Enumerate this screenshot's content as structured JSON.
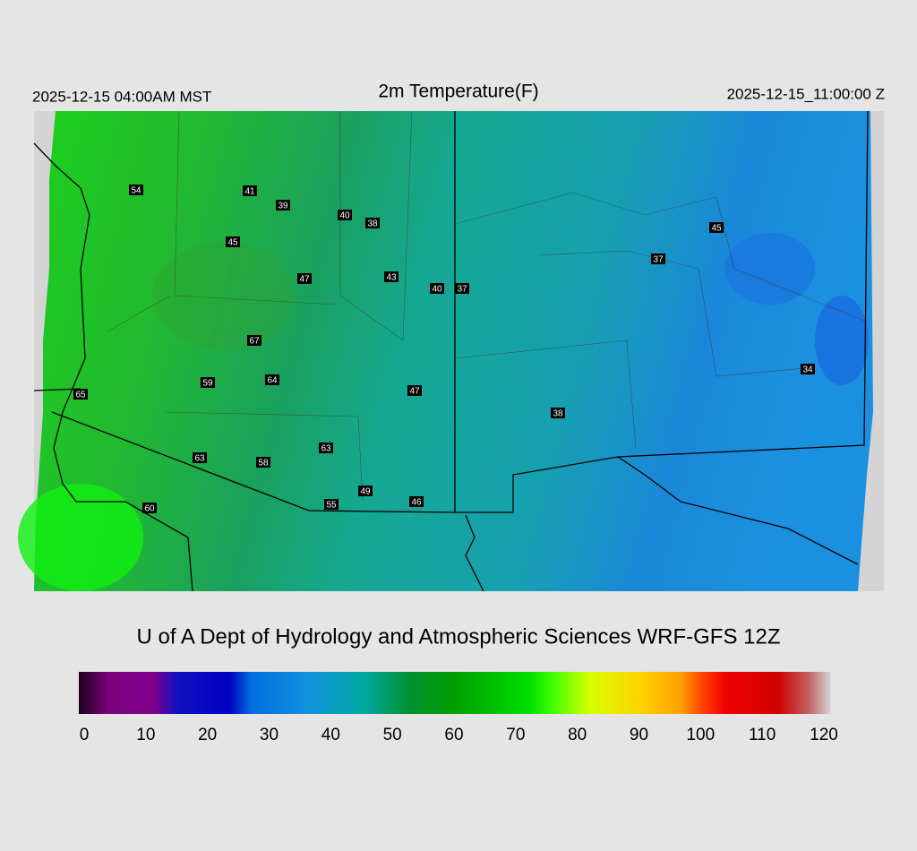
{
  "header": {
    "left": "2025-12-15 04:00AM MST",
    "title": "2m Temperature(F)",
    "right": "2025-12-15_11:00:00 Z"
  },
  "stations": [
    54,
    41,
    39,
    40,
    38,
    45,
    47,
    43,
    40,
    37,
    67,
    59,
    64,
    65,
    47,
    38,
    63,
    63,
    58,
    49,
    55,
    46,
    60,
    45,
    37,
    34
  ],
  "credit": "U of A Dept of Hydrology and Atmospheric Sciences WRF-GFS 12Z",
  "colorbar": {
    "ticks": [
      0,
      10,
      20,
      30,
      40,
      50,
      60,
      70,
      80,
      90,
      100,
      110,
      120
    ]
  }
}
